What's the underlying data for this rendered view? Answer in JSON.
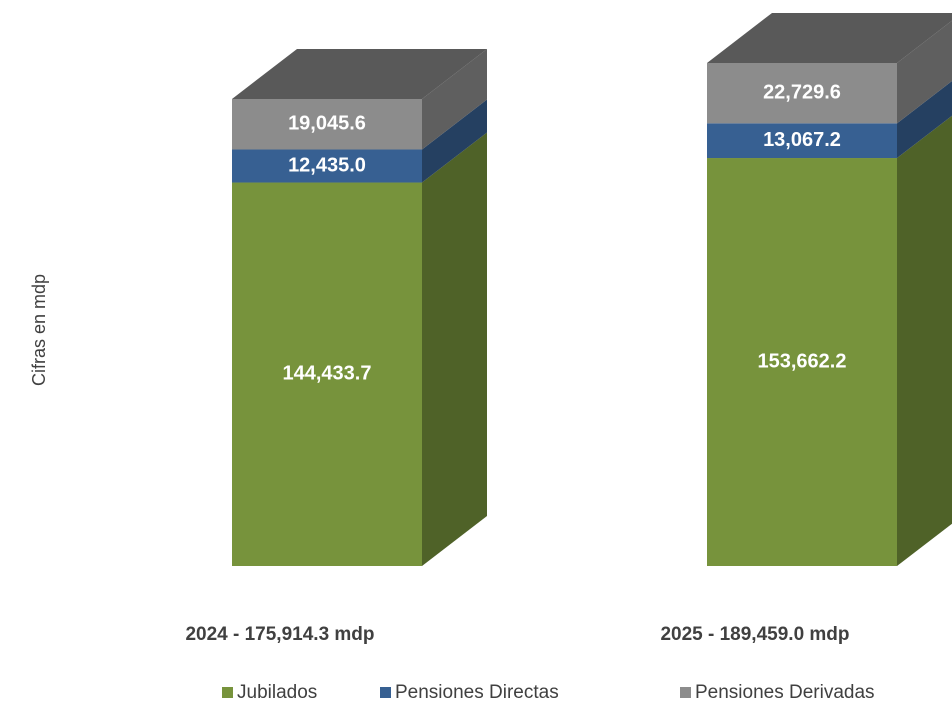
{
  "chart_data": {
    "type": "bar3d_stacked",
    "ylabel": "Cifras en mdp",
    "categories": [
      "2024 - 175,914.3 mdp",
      "2025 - 189,459.0 mdp"
    ],
    "series": [
      {
        "name": "Jubilados",
        "color": "#77933c",
        "side_color": "#4f6228",
        "values": [
          144433.7,
          153662.2
        ],
        "value_labels": [
          "144,433.7",
          "153,662.2"
        ]
      },
      {
        "name": "Pensiones Directas",
        "color": "#376092",
        "side_color": "#254061",
        "values": [
          12435.0,
          13067.2
        ],
        "value_labels": [
          "12,435.0",
          "13,067.2"
        ]
      },
      {
        "name": "Pensiones Derivadas",
        "color": "#8c8c8c",
        "side_color": "#5f5f5f",
        "values": [
          19045.6,
          22729.6
        ],
        "value_labels": [
          "19,045.6",
          "22,729.6"
        ]
      }
    ],
    "top_color": "#595959",
    "ylim": [
      0,
      200000
    ]
  }
}
